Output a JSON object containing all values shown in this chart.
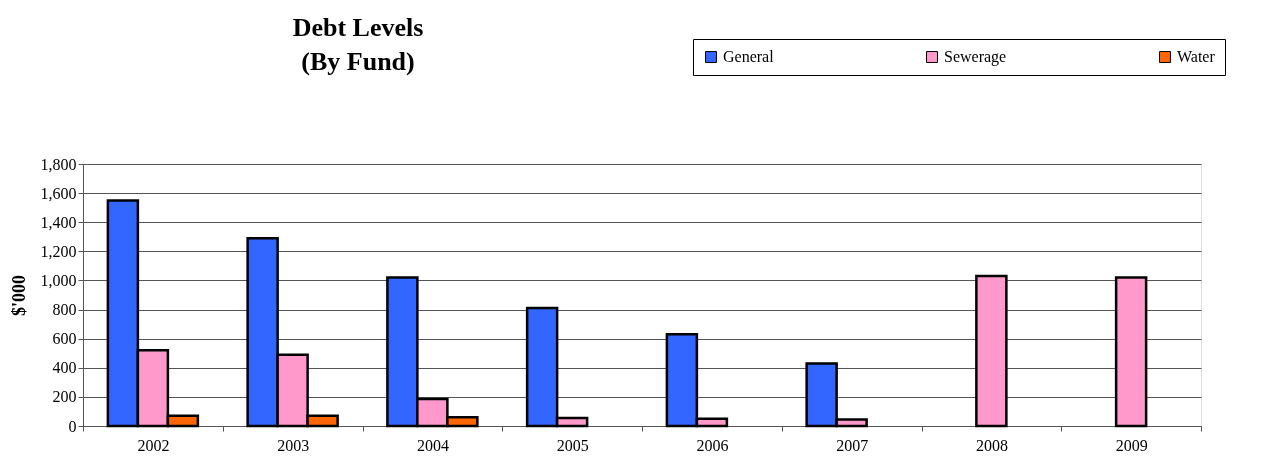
{
  "chart_data": {
    "type": "bar",
    "title": "Debt Levels\n(By Fund)",
    "ylabel": "$'000",
    "categories": [
      "2002",
      "2003",
      "2004",
      "2005",
      "2006",
      "2007",
      "2008",
      "2009"
    ],
    "series": [
      {
        "name": "General",
        "color": "#3366ff",
        "values": [
          1550,
          1290,
          1020,
          810,
          630,
          430,
          null,
          null
        ]
      },
      {
        "name": "Sewerage",
        "color": "#ff99cc",
        "values": [
          520,
          490,
          185,
          55,
          50,
          45,
          1030,
          1020
        ]
      },
      {
        "name": "Water",
        "color": "#ff6600",
        "values": [
          70,
          70,
          60,
          null,
          null,
          null,
          null,
          null
        ]
      }
    ],
    "ylim": [
      0,
      1800
    ],
    "yticks": [
      0,
      200,
      400,
      600,
      800,
      {
        "value": 1000,
        "label": "1,000"
      },
      {
        "value": 1200,
        "label": "1,200"
      },
      {
        "value": 1400,
        "label": "1,400"
      },
      {
        "value": 1600,
        "label": "1,600"
      },
      {
        "value": 1800,
        "label": "1,800"
      }
    ],
    "grid": "y",
    "legend": "top right"
  }
}
